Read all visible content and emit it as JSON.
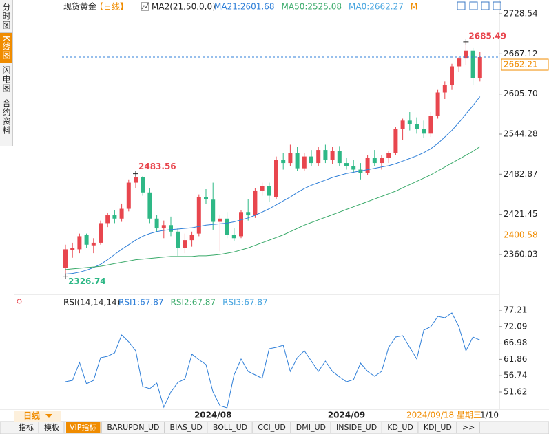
{
  "sidebar_tabs": [
    "分时图",
    "K线图",
    "闪电图",
    "合约资料"
  ],
  "chart_data": [
    {
      "type": "candlestick",
      "title": "现货黄金",
      "period": "【日线】",
      "indicator": "MA2(21,50,0,0)",
      "up_color": "#e8464e",
      "down_color": "#2eb886",
      "categories": [
        null,
        null,
        null,
        null,
        null,
        null,
        null,
        null,
        null,
        null,
        null,
        null,
        null,
        null,
        null,
        null,
        null,
        null,
        null,
        null,
        null,
        "2024/08",
        null,
        null,
        null,
        null,
        null,
        null,
        null,
        null,
        null,
        null,
        null,
        null,
        null,
        null,
        null,
        null,
        null,
        null,
        "2024/09",
        null,
        null,
        null,
        null,
        null,
        null,
        null,
        null,
        null,
        null,
        null,
        null,
        null,
        null,
        null,
        null,
        null,
        null,
        null
      ],
      "open": [
        2340,
        2367,
        2368,
        2390,
        2374,
        2378,
        2408,
        2420,
        2415,
        2430,
        2470,
        2478,
        2455,
        2415,
        2400,
        2405,
        2395,
        2370,
        2382,
        2392,
        2448,
        2444,
        2410,
        2415,
        2390,
        2388,
        2425,
        2420,
        2458,
        2465,
        2448,
        2505,
        2500,
        2515,
        2492,
        2510,
        2500,
        2520,
        2505,
        2518,
        2500,
        2495,
        2490,
        2485,
        2508,
        2500,
        2508,
        2515,
        2552,
        2565,
        2560,
        2552,
        2545,
        2572,
        2608,
        2620,
        2648,
        2660,
        2672,
        2630
      ],
      "high": [
        2375,
        2378,
        2392,
        2392,
        2385,
        2412,
        2424,
        2428,
        2438,
        2475,
        2483.56,
        2480,
        2462,
        2420,
        2412,
        2418,
        2400,
        2392,
        2395,
        2452,
        2460,
        2470,
        2420,
        2425,
        2400,
        2428,
        2445,
        2462,
        2470,
        2470,
        2510,
        2515,
        2528,
        2525,
        2515,
        2520,
        2525,
        2528,
        2525,
        2526,
        2508,
        2505,
        2500,
        2512,
        2520,
        2512,
        2518,
        2555,
        2568,
        2578,
        2570,
        2565,
        2578,
        2612,
        2625,
        2652,
        2662,
        2685.49,
        2676,
        2670
      ],
      "low": [
        2326.74,
        2355,
        2362,
        2370,
        2362,
        2375,
        2402,
        2408,
        2410,
        2426,
        2462,
        2450,
        2408,
        2395,
        2385,
        2388,
        2358,
        2362,
        2372,
        2388,
        2438,
        2398,
        2365,
        2385,
        2380,
        2385,
        2412,
        2416,
        2450,
        2440,
        2445,
        2490,
        2495,
        2488,
        2488,
        2495,
        2495,
        2500,
        2498,
        2495,
        2490,
        2485,
        2475,
        2482,
        2495,
        2490,
        2500,
        2512,
        2535,
        2550,
        2545,
        2538,
        2540,
        2568,
        2598,
        2612,
        2640,
        2650,
        2620,
        2625
      ],
      "close": [
        2368,
        2370,
        2388,
        2375,
        2378,
        2408,
        2420,
        2415,
        2430,
        2470,
        2478,
        2455,
        2415,
        2400,
        2405,
        2395,
        2370,
        2382,
        2390,
        2448,
        2445,
        2410,
        2415,
        2390,
        2385,
        2425,
        2420,
        2458,
        2465,
        2450,
        2505,
        2500,
        2515,
        2492,
        2510,
        2500,
        2520,
        2505,
        2518,
        2500,
        2495,
        2490,
        2485,
        2508,
        2500,
        2508,
        2515,
        2552,
        2565,
        2560,
        2552,
        2545,
        2572,
        2608,
        2620,
        2648,
        2660,
        2672,
        2630,
        2662.21
      ],
      "series": [
        {
          "name": "MA21:2601.68",
          "color": "#2f7fd8",
          "values": [
            2330,
            2331,
            2333,
            2336,
            2340,
            2345,
            2352,
            2360,
            2368,
            2375,
            2382,
            2388,
            2392,
            2395,
            2397,
            2398,
            2399,
            2400,
            2401,
            2403,
            2405,
            2406,
            2407,
            2408,
            2410,
            2413,
            2416,
            2420,
            2425,
            2430,
            2436,
            2442,
            2448,
            2455,
            2461,
            2466,
            2470,
            2474,
            2478,
            2481,
            2484,
            2486,
            2488,
            2490,
            2492,
            2494,
            2496,
            2499,
            2503,
            2507,
            2511,
            2516,
            2522,
            2530,
            2540,
            2550,
            2562,
            2575,
            2588,
            2601.68
          ]
        },
        {
          "name": "MA50:2525.08",
          "color": "#3aaa6a",
          "values": [
            2337,
            2338,
            2339,
            2340,
            2341,
            2342,
            2344,
            2346,
            2348,
            2350,
            2352,
            2353,
            2354,
            2355,
            2356,
            2357,
            2357,
            2357,
            2357,
            2358,
            2358,
            2359,
            2360,
            2362,
            2364,
            2367,
            2370,
            2374,
            2378,
            2382,
            2386,
            2390,
            2395,
            2400,
            2405,
            2409,
            2413,
            2417,
            2421,
            2425,
            2429,
            2433,
            2437,
            2441,
            2445,
            2449,
            2453,
            2457,
            2462,
            2467,
            2472,
            2477,
            2482,
            2488,
            2494,
            2500,
            2506,
            2512,
            2518,
            2525.08
          ]
        }
      ],
      "legend_extra": [
        {
          "name": "MA0:2662.27",
          "color": "#4aa6e0"
        },
        {
          "name": "M",
          "color": "#f08c00"
        }
      ],
      "reference_label": "2400.58",
      "ylim": [
        2302.1,
        2741.2
      ],
      "yticks": [
        2728.54,
        2667.12,
        {
          "value": 2605.7,
          "label": "2605.70"
        },
        2544.28,
        2482.87,
        2421.45,
        2360.03
      ]
    },
    {
      "type": "line",
      "title": "RSI(14,14,14)",
      "series": [
        {
          "name": "RSI1:67.87",
          "color": "#2f7fd8",
          "values": [
            54.85,
            55.28,
            60.87,
            54.2,
            55.28,
            62.37,
            62.8,
            63.88,
            69.47,
            67.32,
            64.52,
            53.34,
            52.7,
            54.42,
            46.89,
            51.62,
            54.63,
            55.71,
            63.45,
            61.73,
            60.22,
            51.62,
            47.32,
            46.67,
            57.0,
            61.94,
            58.07,
            57.0,
            55.92,
            65.17,
            65.6,
            66.24,
            58.07,
            62.37,
            64.52,
            61.3,
            58.07,
            61.3,
            58.07,
            56.35,
            54.85,
            55.49,
            60.65,
            58.07,
            56.57,
            58.07,
            65.6,
            68.82,
            69.25,
            65.6,
            61.94,
            70.97,
            72.05,
            75.27,
            74.84,
            76.35,
            72.05,
            64.52,
            68.82,
            67.87
          ]
        }
      ],
      "legend_extra": [
        {
          "name": "RSI2:67.87",
          "color": "#3aaa6a"
        },
        {
          "name": "RSI3:67.87",
          "color": "#4aa6e0"
        }
      ],
      "ylim": [
        46.24,
        78.5
      ],
      "yticks": [
        77.21,
        72.09,
        66.98,
        61.86,
        56.74,
        51.62
      ]
    }
  ],
  "footer": {
    "period_button": "日线",
    "date": "2024/09/18 星期三",
    "page": "1/10"
  },
  "indicator_tabs": [
    "指标",
    "模板",
    "VIP指标",
    "BARUPDN_UD",
    "BIAS_UD",
    "BOLL_UD",
    "CCI_UD",
    "DMI_UD",
    "INSIDE_UD",
    "KD_UD",
    "KDJ_UD",
    ">>"
  ]
}
